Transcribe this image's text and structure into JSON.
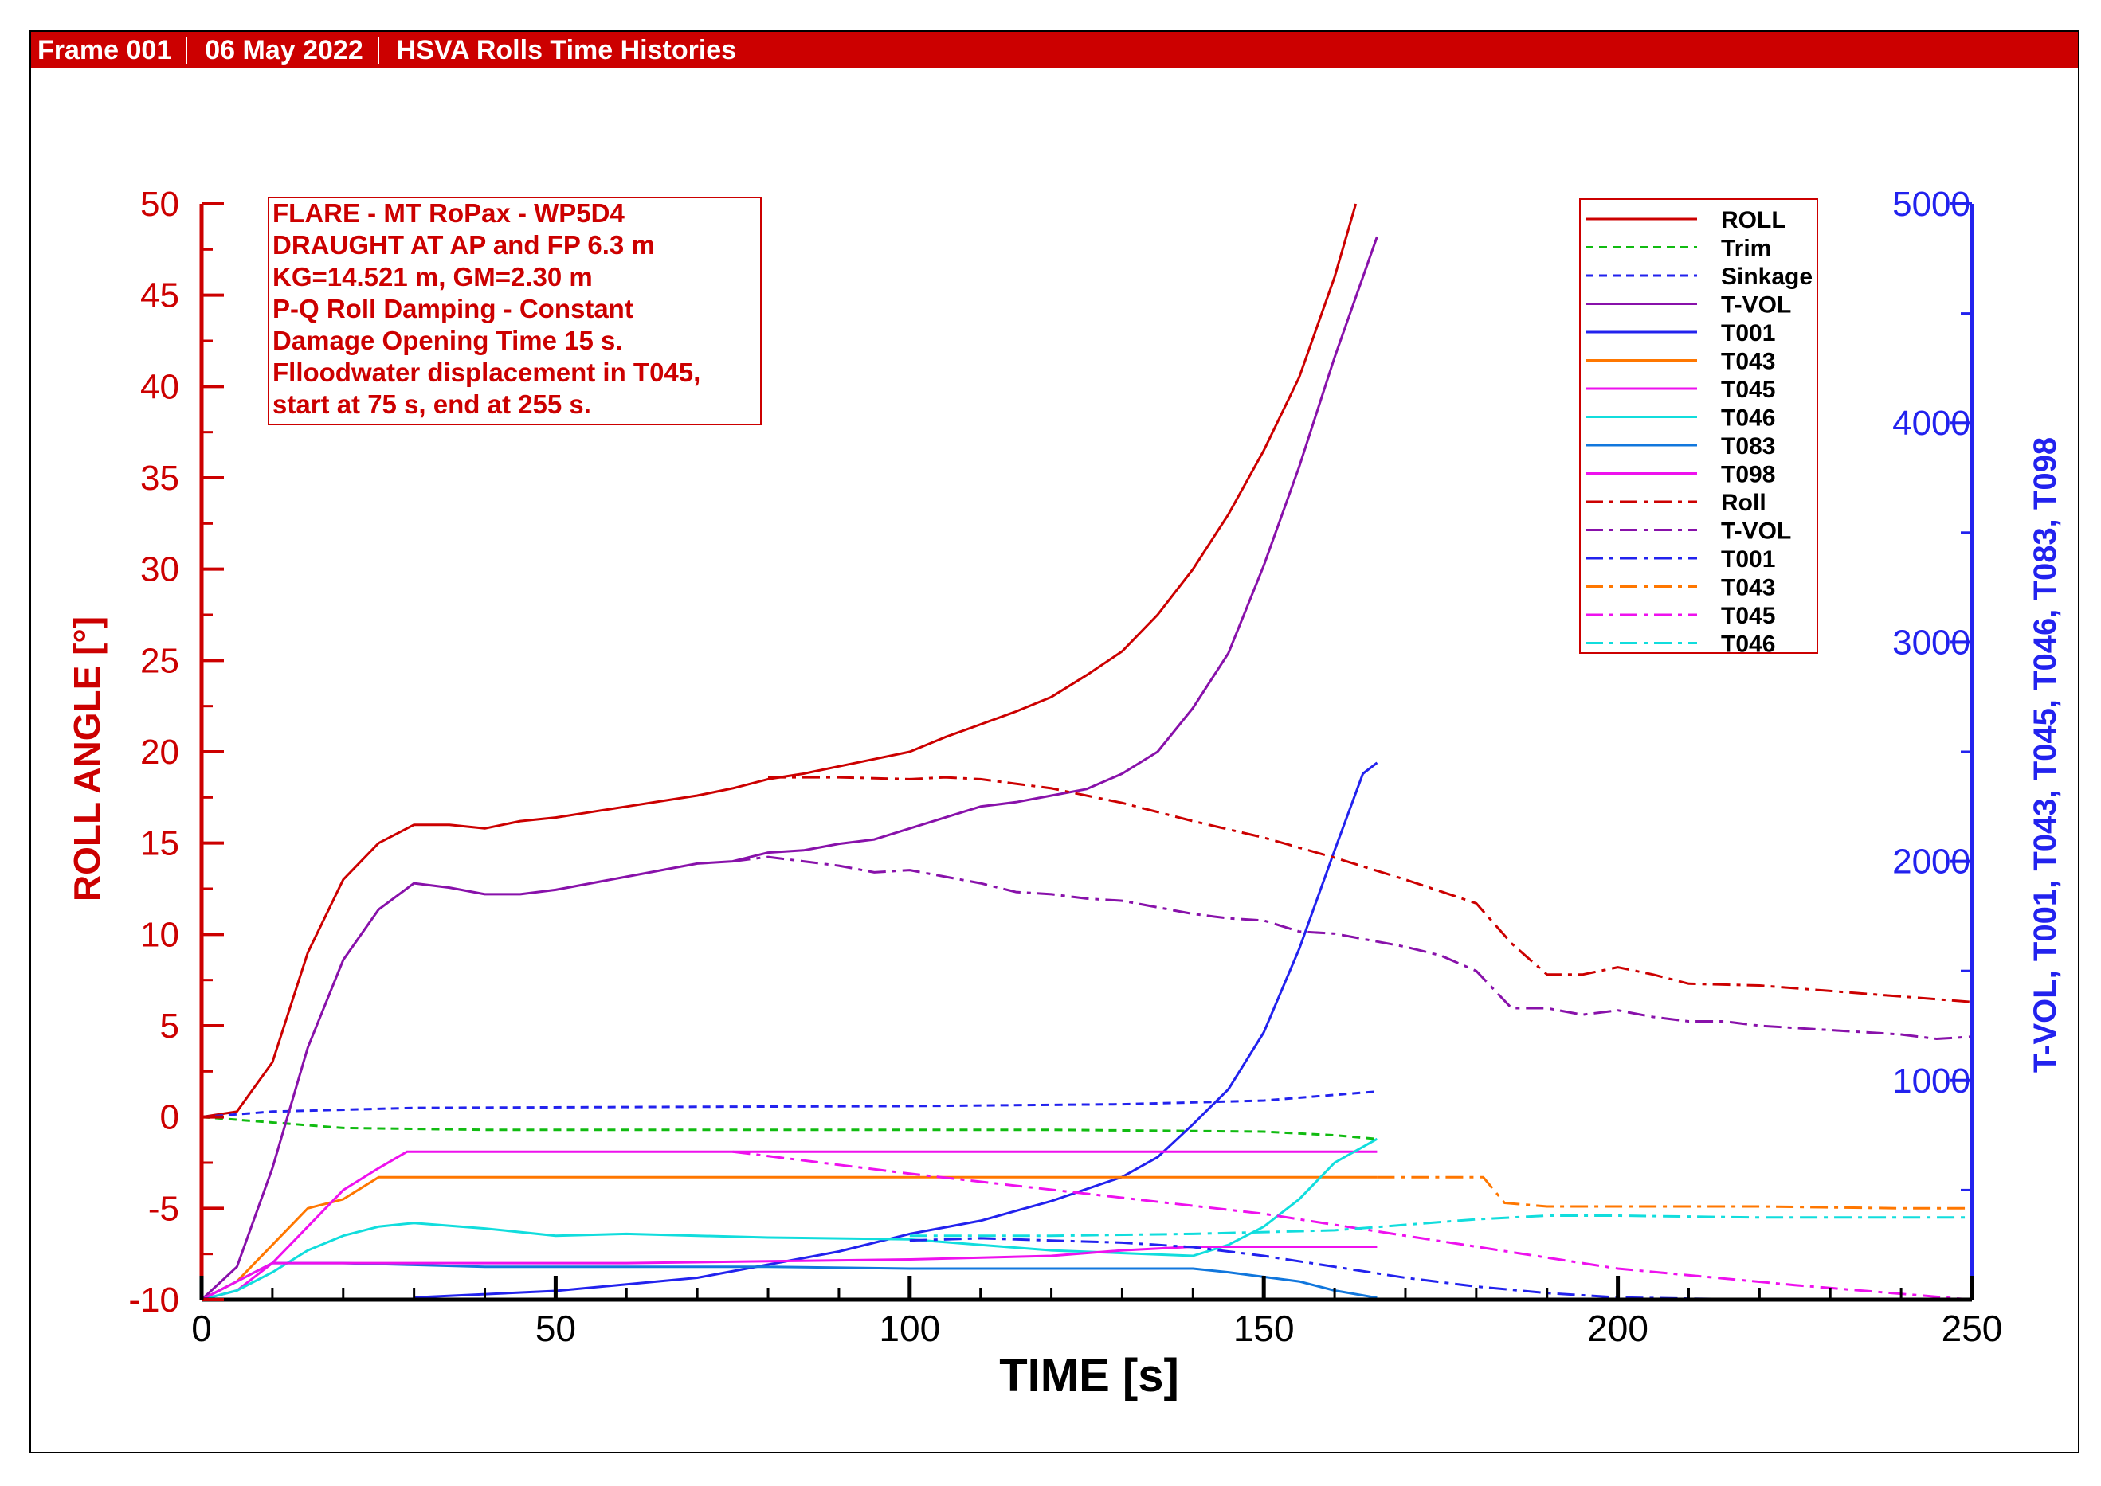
{
  "header": {
    "frame": "Frame 001",
    "date": "06 May 2022",
    "title": "HSVA Rolls Time Histories"
  },
  "annotation": {
    "lines": [
      "FLARE - MT RoPax - WP5D4",
      "DRAUGHT AT AP and FP 6.3 m",
      "KG=14.521 m, GM=2.30 m",
      "P-Q Roll Damping - Constant",
      "Damage Opening Time 15 s.",
      "Flloodwater displacement in T045,",
      "start at 75 s, end at 255 s."
    ]
  },
  "colors": {
    "header_bg": "#cc0000",
    "left_axis": "#cc0000",
    "right_axis": "#2222ee"
  },
  "chart_data": {
    "type": "line",
    "xlabel": "TIME [s]",
    "ylabel": "ROLL ANGLE [°]",
    "y2label": "T-VOL, T001, T043, T045, T046, T083, T098",
    "xlim": [
      0,
      250
    ],
    "ylim": [
      -10,
      50
    ],
    "y2lim": [
      0,
      5000
    ],
    "x_ticks": [
      0,
      50,
      100,
      150,
      200,
      250
    ],
    "y_ticks": [
      -10,
      -5,
      0,
      5,
      10,
      15,
      20,
      25,
      30,
      35,
      40,
      45,
      50
    ],
    "y2_ticks": [
      1000,
      2000,
      3000,
      4000,
      5000
    ],
    "legend_position": "top-right",
    "grid": false,
    "series": [
      {
        "name": "ROLL",
        "axis": "left",
        "color": "#cc0000",
        "dash": "solid",
        "points": [
          [
            0,
            0
          ],
          [
            5,
            0.3
          ],
          [
            10,
            3
          ],
          [
            15,
            9
          ],
          [
            20,
            13
          ],
          [
            25,
            15
          ],
          [
            30,
            16
          ],
          [
            35,
            16
          ],
          [
            40,
            15.8
          ],
          [
            45,
            16.2
          ],
          [
            50,
            16.4
          ],
          [
            55,
            16.7
          ],
          [
            60,
            17
          ],
          [
            65,
            17.3
          ],
          [
            70,
            17.6
          ],
          [
            75,
            18
          ],
          [
            80,
            18.5
          ],
          [
            85,
            18.8
          ],
          [
            90,
            19.2
          ],
          [
            95,
            19.6
          ],
          [
            100,
            20
          ],
          [
            105,
            20.8
          ],
          [
            110,
            21.5
          ],
          [
            115,
            22.2
          ],
          [
            120,
            23
          ],
          [
            125,
            24.2
          ],
          [
            130,
            25.5
          ],
          [
            135,
            27.5
          ],
          [
            140,
            30
          ],
          [
            145,
            33
          ],
          [
            150,
            36.5
          ],
          [
            155,
            40.5
          ],
          [
            160,
            46
          ],
          [
            163,
            50
          ]
        ]
      },
      {
        "name": "Trim",
        "axis": "left",
        "color": "#11bb11",
        "dash": "10,7",
        "points": [
          [
            0,
            0
          ],
          [
            10,
            -0.3
          ],
          [
            20,
            -0.6
          ],
          [
            40,
            -0.7
          ],
          [
            80,
            -0.7
          ],
          [
            120,
            -0.7
          ],
          [
            150,
            -0.8
          ],
          [
            160,
            -1
          ],
          [
            166,
            -1.2
          ]
        ]
      },
      {
        "name": "Sinkage",
        "axis": "left",
        "color": "#2222ee",
        "dash": "10,7",
        "points": [
          [
            0,
            0
          ],
          [
            10,
            0.3
          ],
          [
            30,
            0.5
          ],
          [
            60,
            0.55
          ],
          [
            100,
            0.6
          ],
          [
            130,
            0.7
          ],
          [
            150,
            0.9
          ],
          [
            166,
            1.4
          ]
        ]
      },
      {
        "name": "T-VOL",
        "axis": "right",
        "color": "#8811aa",
        "dash": "solid",
        "points": [
          [
            0,
            0
          ],
          [
            5,
            150
          ],
          [
            10,
            600
          ],
          [
            15,
            1150
          ],
          [
            20,
            1550
          ],
          [
            25,
            1780
          ],
          [
            30,
            1900
          ],
          [
            35,
            1880
          ],
          [
            40,
            1850
          ],
          [
            45,
            1850
          ],
          [
            50,
            1870
          ],
          [
            55,
            1900
          ],
          [
            60,
            1930
          ],
          [
            65,
            1960
          ],
          [
            70,
            1990
          ],
          [
            75,
            2000
          ],
          [
            80,
            2040
          ],
          [
            85,
            2050
          ],
          [
            90,
            2080
          ],
          [
            95,
            2100
          ],
          [
            100,
            2150
          ],
          [
            105,
            2200
          ],
          [
            110,
            2250
          ],
          [
            115,
            2270
          ],
          [
            120,
            2300
          ],
          [
            125,
            2330
          ],
          [
            130,
            2400
          ],
          [
            135,
            2500
          ],
          [
            140,
            2700
          ],
          [
            145,
            2950
          ],
          [
            150,
            3350
          ],
          [
            155,
            3800
          ],
          [
            160,
            4300
          ],
          [
            166,
            4850
          ]
        ]
      },
      {
        "name": "T001",
        "axis": "right",
        "color": "#2222ee",
        "dash": "solid",
        "points": [
          [
            30,
            10
          ],
          [
            50,
            40
          ],
          [
            70,
            100
          ],
          [
            80,
            160
          ],
          [
            90,
            220
          ],
          [
            100,
            300
          ],
          [
            110,
            360
          ],
          [
            120,
            450
          ],
          [
            130,
            560
          ],
          [
            135,
            650
          ],
          [
            140,
            800
          ],
          [
            145,
            960
          ],
          [
            150,
            1220
          ],
          [
            155,
            1600
          ],
          [
            160,
            2050
          ],
          [
            164,
            2400
          ],
          [
            166,
            2450
          ]
        ]
      },
      {
        "name": "T043",
        "axis": "left",
        "color": "#ff7700",
        "dash": "solid",
        "points": [
          [
            0,
            -10
          ],
          [
            5,
            -9
          ],
          [
            10,
            -7
          ],
          [
            15,
            -5
          ],
          [
            20,
            -4.5
          ],
          [
            25,
            -3.3
          ],
          [
            30,
            -3.3
          ],
          [
            166,
            -3.3
          ]
        ]
      },
      {
        "name": "T045",
        "axis": "left",
        "color": "#ee11ee",
        "dash": "solid",
        "points": [
          [
            0,
            -10
          ],
          [
            5,
            -9.5
          ],
          [
            10,
            -8
          ],
          [
            15,
            -6
          ],
          [
            20,
            -4
          ],
          [
            25,
            -2.8
          ],
          [
            29,
            -1.9
          ],
          [
            30,
            -1.9
          ],
          [
            166,
            -1.9
          ]
        ]
      },
      {
        "name": "T046",
        "axis": "left",
        "color": "#11dddd",
        "dash": "solid",
        "points": [
          [
            0,
            -10
          ],
          [
            5,
            -9.5
          ],
          [
            10,
            -8.5
          ],
          [
            15,
            -7.3
          ],
          [
            20,
            -6.5
          ],
          [
            25,
            -6
          ],
          [
            30,
            -5.8
          ],
          [
            40,
            -6.1
          ],
          [
            50,
            -6.5
          ],
          [
            60,
            -6.4
          ],
          [
            80,
            -6.6
          ],
          [
            100,
            -6.7
          ],
          [
            120,
            -7.3
          ],
          [
            140,
            -7.6
          ],
          [
            145,
            -7
          ],
          [
            150,
            -6
          ],
          [
            155,
            -4.5
          ],
          [
            160,
            -2.5
          ],
          [
            166,
            -1.2
          ]
        ]
      },
      {
        "name": "T083",
        "axis": "left",
        "color": "#1177dd",
        "dash": "solid",
        "points": [
          [
            0,
            -10
          ],
          [
            5,
            -9
          ],
          [
            10,
            -8
          ],
          [
            20,
            -8
          ],
          [
            30,
            -8.1
          ],
          [
            40,
            -8.2
          ],
          [
            60,
            -8.2
          ],
          [
            80,
            -8.2
          ],
          [
            100,
            -8.3
          ],
          [
            120,
            -8.3
          ],
          [
            140,
            -8.3
          ],
          [
            145,
            -8.5
          ],
          [
            155,
            -9
          ],
          [
            160,
            -9.5
          ],
          [
            166,
            -9.9
          ]
        ]
      },
      {
        "name": "T098",
        "axis": "left",
        "color": "#ee11ee",
        "dash": "solid",
        "points": [
          [
            0,
            -10
          ],
          [
            5,
            -9
          ],
          [
            10,
            -8
          ],
          [
            20,
            -8
          ],
          [
            40,
            -8
          ],
          [
            60,
            -8
          ],
          [
            80,
            -7.9
          ],
          [
            100,
            -7.8
          ],
          [
            120,
            -7.6
          ],
          [
            130,
            -7.3
          ],
          [
            140,
            -7.1
          ],
          [
            166,
            -7.1
          ]
        ]
      },
      {
        "name": "Roll",
        "axis": "left",
        "color": "#cc0000",
        "dash": "22,8,5,8",
        "points": [
          [
            80,
            18.6
          ],
          [
            90,
            18.6
          ],
          [
            100,
            18.5
          ],
          [
            105,
            18.6
          ],
          [
            110,
            18.5
          ],
          [
            120,
            18
          ],
          [
            130,
            17.2
          ],
          [
            140,
            16.2
          ],
          [
            150,
            15.3
          ],
          [
            160,
            14.2
          ],
          [
            170,
            13
          ],
          [
            180,
            11.7
          ],
          [
            185,
            9.5
          ],
          [
            190,
            7.8
          ],
          [
            195,
            7.8
          ],
          [
            200,
            8.2
          ],
          [
            205,
            7.8
          ],
          [
            210,
            7.3
          ],
          [
            220,
            7.2
          ],
          [
            230,
            6.9
          ],
          [
            240,
            6.6
          ],
          [
            250,
            6.3
          ]
        ]
      },
      {
        "name": "T-VOL",
        "axis": "right",
        "color": "#8811aa",
        "dash": "22,8,5,8",
        "points": [
          [
            75,
            2000
          ],
          [
            80,
            2020
          ],
          [
            85,
            2000
          ],
          [
            90,
            1980
          ],
          [
            95,
            1950
          ],
          [
            100,
            1960
          ],
          [
            105,
            1930
          ],
          [
            110,
            1900
          ],
          [
            115,
            1860
          ],
          [
            120,
            1850
          ],
          [
            125,
            1830
          ],
          [
            130,
            1820
          ],
          [
            135,
            1790
          ],
          [
            140,
            1760
          ],
          [
            145,
            1740
          ],
          [
            150,
            1730
          ],
          [
            155,
            1680
          ],
          [
            160,
            1670
          ],
          [
            165,
            1640
          ],
          [
            170,
            1610
          ],
          [
            175,
            1570
          ],
          [
            180,
            1500
          ],
          [
            185,
            1330
          ],
          [
            190,
            1330
          ],
          [
            195,
            1300
          ],
          [
            200,
            1320
          ],
          [
            205,
            1290
          ],
          [
            210,
            1270
          ],
          [
            215,
            1270
          ],
          [
            220,
            1250
          ],
          [
            230,
            1230
          ],
          [
            240,
            1210
          ],
          [
            245,
            1190
          ],
          [
            250,
            1200
          ]
        ]
      },
      {
        "name": "T001",
        "axis": "right",
        "color": "#2222ee",
        "dash": "22,8,5,8",
        "points": [
          [
            100,
            270
          ],
          [
            110,
            280
          ],
          [
            120,
            270
          ],
          [
            130,
            260
          ],
          [
            140,
            240
          ],
          [
            150,
            200
          ],
          [
            160,
            150
          ],
          [
            170,
            100
          ],
          [
            180,
            60
          ],
          [
            190,
            30
          ],
          [
            200,
            10
          ],
          [
            210,
            5
          ],
          [
            220,
            0
          ],
          [
            250,
            0
          ]
        ]
      },
      {
        "name": "T043",
        "axis": "left",
        "color": "#ff7700",
        "dash": "22,8,5,8",
        "points": [
          [
            166,
            -3.3
          ],
          [
            181,
            -3.3
          ],
          [
            184,
            -4.7
          ],
          [
            190,
            -4.9
          ],
          [
            200,
            -4.9
          ],
          [
            220,
            -4.9
          ],
          [
            240,
            -5
          ],
          [
            250,
            -5
          ]
        ]
      },
      {
        "name": "T045",
        "axis": "left",
        "color": "#ee11ee",
        "dash": "22,8,5,8",
        "points": [
          [
            75,
            -1.9
          ],
          [
            100,
            -3.1
          ],
          [
            125,
            -4.2
          ],
          [
            150,
            -5.3
          ],
          [
            175,
            -6.8
          ],
          [
            200,
            -8.3
          ],
          [
            225,
            -9.2
          ],
          [
            250,
            -10
          ]
        ]
      },
      {
        "name": "T046",
        "axis": "left",
        "color": "#11dddd",
        "dash": "22,8,5,8",
        "points": [
          [
            100,
            -6.5
          ],
          [
            120,
            -6.5
          ],
          [
            140,
            -6.4
          ],
          [
            160,
            -6.2
          ],
          [
            170,
            -5.9
          ],
          [
            180,
            -5.6
          ],
          [
            190,
            -5.4
          ],
          [
            200,
            -5.4
          ],
          [
            220,
            -5.5
          ],
          [
            250,
            -5.5
          ]
        ]
      }
    ]
  }
}
